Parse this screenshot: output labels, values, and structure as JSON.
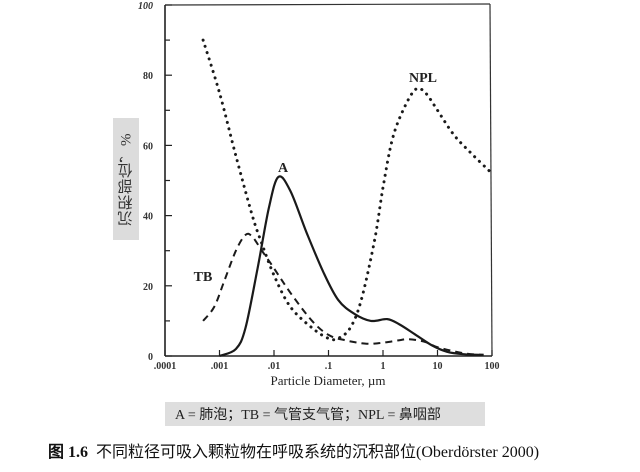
{
  "chart_data": {
    "type": "line",
    "title": "",
    "xlabel": "Particle Diameter, µm",
    "ylabel": "沉积部位，%",
    "xscale": "log",
    "xlim": [
      0.0001,
      100
    ],
    "ylim": [
      0,
      100
    ],
    "x_ticks": [
      ".0001",
      ".001",
      ".01",
      ".1",
      "1",
      "10",
      "100"
    ],
    "y_ticks": [
      "0",
      "20",
      "40",
      "60",
      "80",
      "100"
    ],
    "grid": false,
    "series": [
      {
        "name": "A",
        "label_text": "A",
        "style": "solid",
        "x": [
          0.001,
          0.002,
          0.003,
          0.005,
          0.008,
          0.012,
          0.02,
          0.04,
          0.08,
          0.15,
          0.3,
          0.6,
          1.2,
          2,
          4,
          8,
          15,
          30,
          70
        ],
        "y": [
          0,
          2,
          8,
          25,
          42,
          51,
          47,
          35,
          24,
          16,
          12,
          10,
          10.5,
          9,
          6,
          3,
          1.2,
          0.5,
          0.3
        ]
      },
      {
        "name": "TB",
        "label_text": "TB",
        "style": "dashed",
        "x": [
          0.0005,
          0.0008,
          0.0012,
          0.002,
          0.003,
          0.004,
          0.006,
          0.01,
          0.02,
          0.05,
          0.1,
          0.2,
          0.5,
          1,
          2,
          3,
          6,
          10,
          30,
          70
        ],
        "y": [
          10,
          14,
          21,
          30,
          34.5,
          34,
          30,
          25,
          18,
          10,
          6,
          4.5,
          3.5,
          3.8,
          4.5,
          4.8,
          4,
          2.5,
          0.8,
          0.3
        ]
      },
      {
        "name": "NPL",
        "label_text": "NPL",
        "style": "dotted",
        "x": [
          0.0005,
          0.001,
          0.002,
          0.004,
          0.006,
          0.01,
          0.02,
          0.05,
          0.1,
          0.15,
          0.25,
          0.4,
          0.7,
          1,
          1.5,
          2.5,
          4,
          6,
          10,
          20,
          40,
          100
        ],
        "y": [
          90,
          75,
          57,
          40,
          32,
          23,
          14,
          8,
          5,
          5,
          8,
          16,
          33,
          48,
          62,
          71,
          76,
          75,
          70,
          63,
          58,
          52
        ]
      }
    ],
    "annotations": [
      "A",
      "TB",
      "NPL"
    ]
  },
  "legend": {
    "text": "A = 肺泡；TB = 气管支气管；NPL = 鼻咽部"
  },
  "caption": {
    "figure_number": "图 1.6",
    "text": "不同粒径可吸入颗粒物在呼吸系统的沉积部位(Oberdörster 2000)"
  }
}
